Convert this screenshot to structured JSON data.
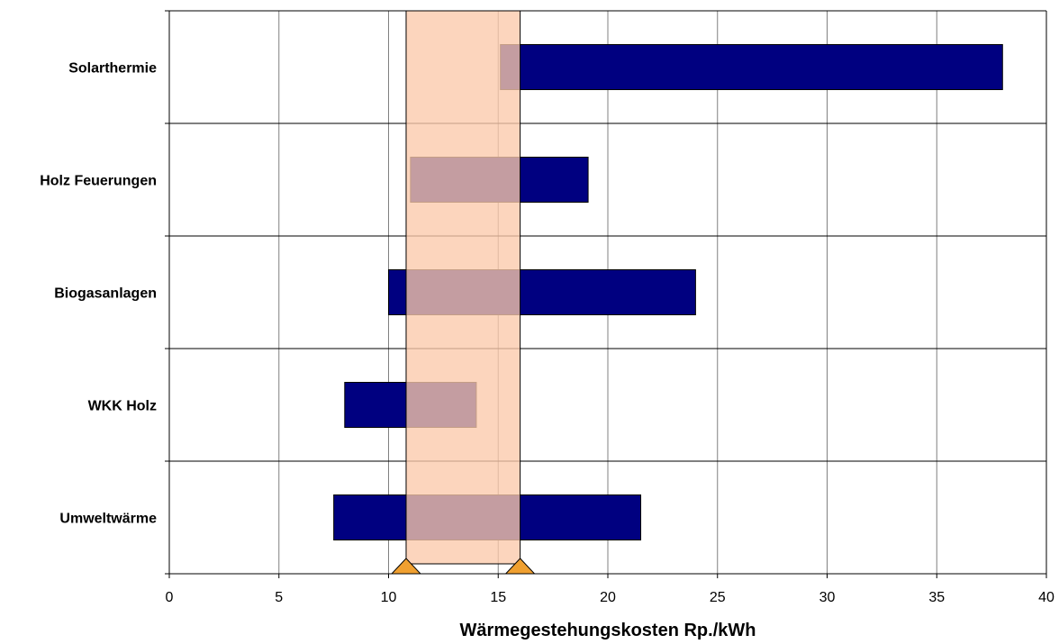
{
  "chart_data": {
    "type": "bar",
    "orientation": "horizontal",
    "subtype": "floating-range",
    "categories": [
      "Solarthermie",
      "Holz Feuerungen",
      "Biogasanlagen",
      "WKK Holz",
      "Umweltwärme"
    ],
    "series": [
      {
        "ranges": [
          [
            15.1,
            38.0
          ],
          [
            11.0,
            19.1
          ],
          [
            10.0,
            24.0
          ],
          [
            8.0,
            14.0
          ],
          [
            7.5,
            21.5
          ]
        ]
      }
    ],
    "reference_band": {
      "from": 10.8,
      "to": 16.0
    },
    "reference_markers": [
      10.8,
      16.0
    ],
    "xlabel": "Wärmegestehungskosten Rp./kWh",
    "ylabel": "",
    "xlim": [
      0,
      40
    ],
    "xticks": [
      0,
      5,
      10,
      15,
      20,
      25,
      30,
      35,
      40
    ],
    "grid": true
  },
  "colors": {
    "bar": "#000080",
    "band": "#fbc9ab",
    "marker": "#f0a030",
    "grid": "#808080"
  }
}
